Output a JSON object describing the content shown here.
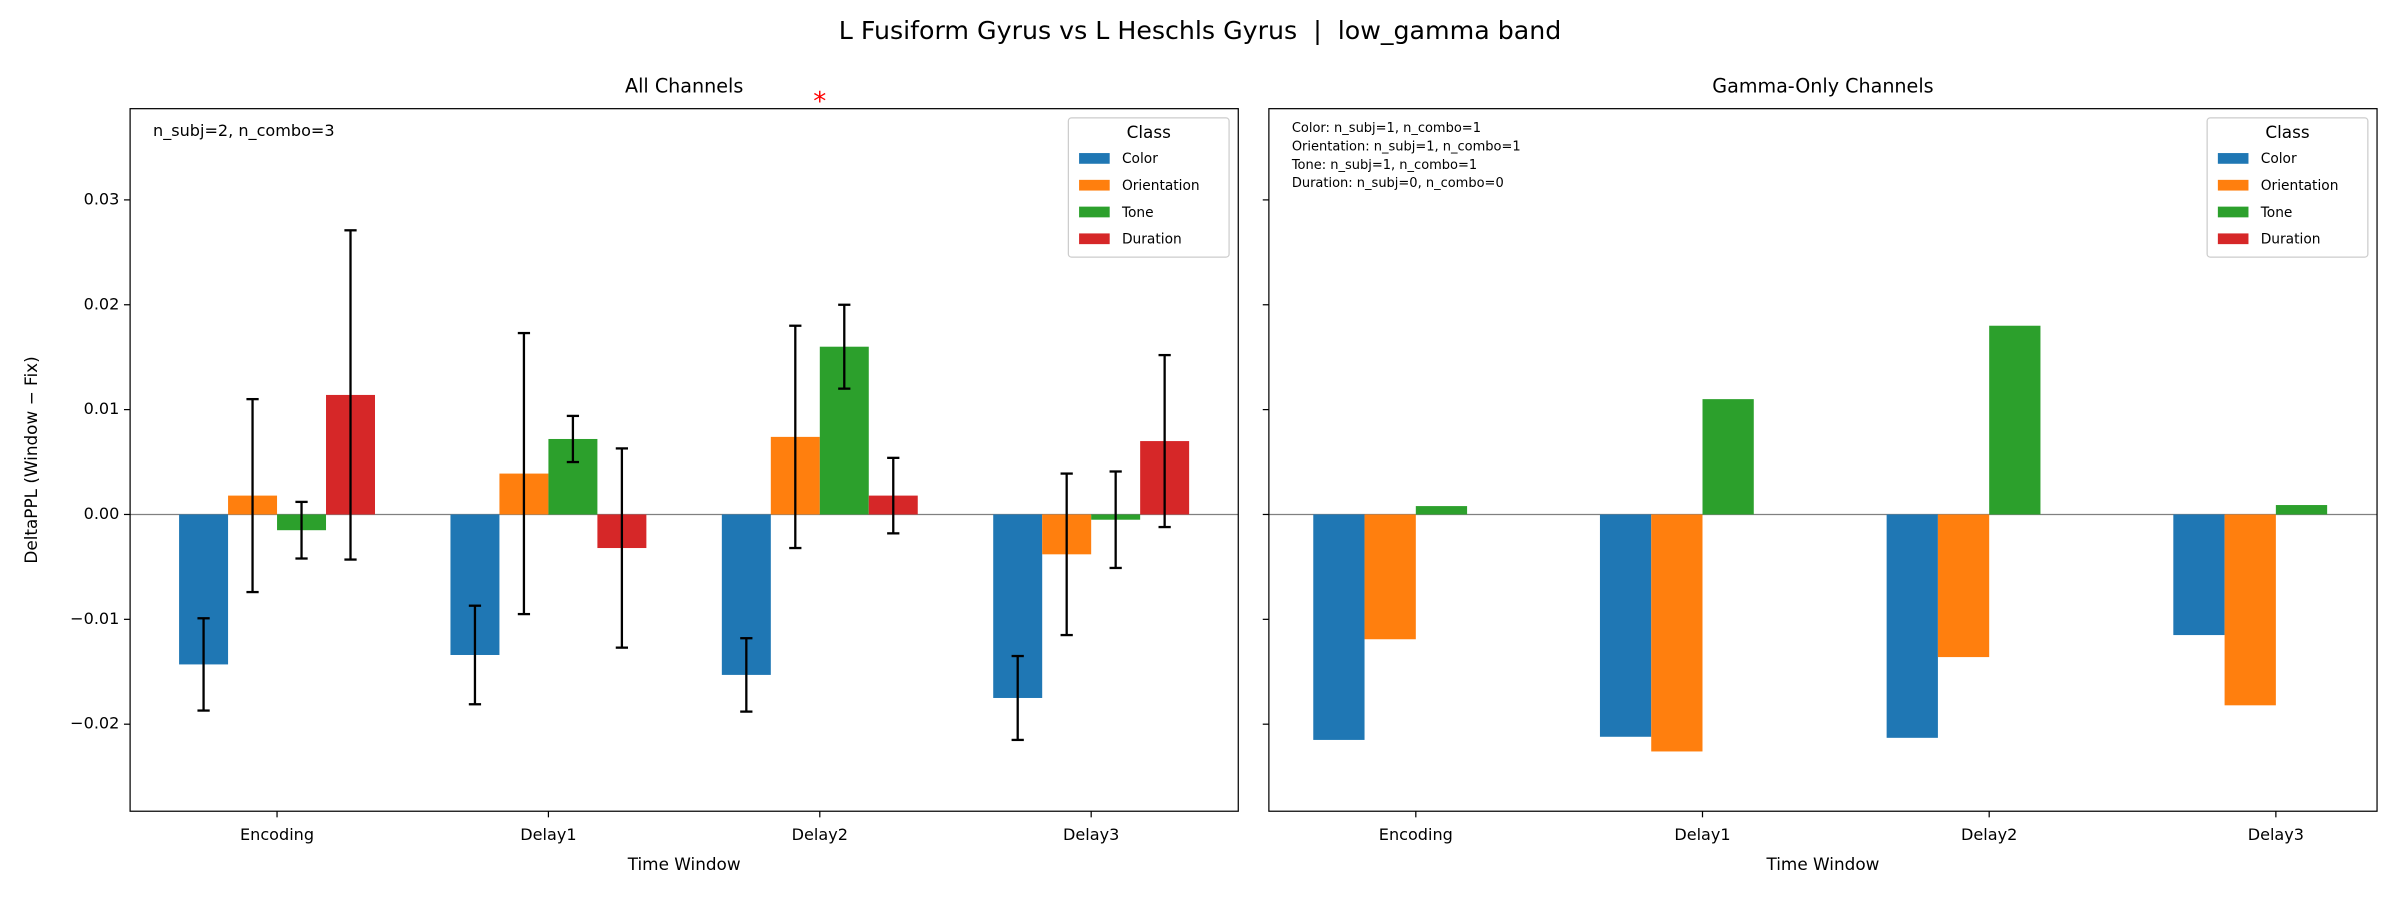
{
  "title": "L Fusiform Gyrus vs L Heschls Gyrus  |  low_gamma band",
  "chart_data": [
    {
      "type": "bar",
      "title": "All Channels",
      "xlabel": "Time Window",
      "ylabel": "DeltaPPL (Window − Fix)",
      "categories": [
        "Encoding",
        "Delay1",
        "Delay2",
        "Delay3"
      ],
      "series": [
        {
          "name": "Color",
          "color": "#1f77b4",
          "values": [
            -0.0143,
            -0.0134,
            -0.0153,
            -0.0175
          ],
          "errors": [
            0.0044,
            0.0047,
            0.0035,
            0.004
          ]
        },
        {
          "name": "Orientation",
          "color": "#ff7f0e",
          "values": [
            0.0018,
            0.0039,
            0.0074,
            -0.0038
          ],
          "errors": [
            0.0092,
            0.0134,
            0.0106,
            0.0077
          ]
        },
        {
          "name": "Tone",
          "color": "#2ca02c",
          "values": [
            -0.0015,
            0.0072,
            0.016,
            -0.0005
          ],
          "errors": [
            0.0027,
            0.0022,
            0.004,
            0.0046
          ]
        },
        {
          "name": "Duration",
          "color": "#d62728",
          "values": [
            0.0114,
            -0.0032,
            0.0018,
            0.007
          ],
          "errors": [
            0.0157,
            0.0095,
            0.0036,
            0.0082
          ]
        }
      ],
      "ylim": [
        -0.0283,
        0.0387
      ],
      "yticks": [
        {
          "value": -0.02,
          "label": "−0.02"
        },
        {
          "value": -0.01,
          "label": "−0.01"
        },
        {
          "value": 0,
          "label": "0.00"
        },
        {
          "value": 0.01,
          "label": "0.01"
        },
        {
          "value": 0.02,
          "label": "0.02"
        },
        {
          "value": 0.03,
          "label": "0.03"
        }
      ],
      "legend_title": "Class",
      "legend": "upper right",
      "annotation_lines": [
        "n_subj=2, n_combo=3"
      ],
      "significance": "*"
    },
    {
      "type": "bar",
      "title": "Gamma-Only Channels",
      "xlabel": "Time Window",
      "categories": [
        "Encoding",
        "Delay1",
        "Delay2",
        "Delay3"
      ],
      "series": [
        {
          "name": "Color",
          "color": "#1f77b4",
          "values": [
            -0.0215,
            -0.0212,
            -0.0213,
            -0.0115
          ]
        },
        {
          "name": "Orientation",
          "color": "#ff7f0e",
          "values": [
            -0.0119,
            -0.0226,
            -0.0136,
            -0.0182
          ]
        },
        {
          "name": "Tone",
          "color": "#2ca02c",
          "values": [
            0.0008,
            0.011,
            0.018,
            0.0009
          ]
        },
        {
          "name": "Duration",
          "color": "#d62728",
          "values": [
            null,
            null,
            null,
            null
          ]
        }
      ],
      "ylim": [
        -0.0283,
        0.0387
      ],
      "yticks": [
        -0.02,
        -0.01,
        0,
        0.01,
        0.02,
        0.03
      ],
      "legend_title": "Class",
      "legend": "upper right",
      "annotation_lines": [
        "Color: n_subj=1, n_combo=1",
        "Orientation: n_subj=1, n_combo=1",
        "Tone: n_subj=1, n_combo=1",
        "Duration: n_subj=0, n_combo=0"
      ]
    }
  ]
}
